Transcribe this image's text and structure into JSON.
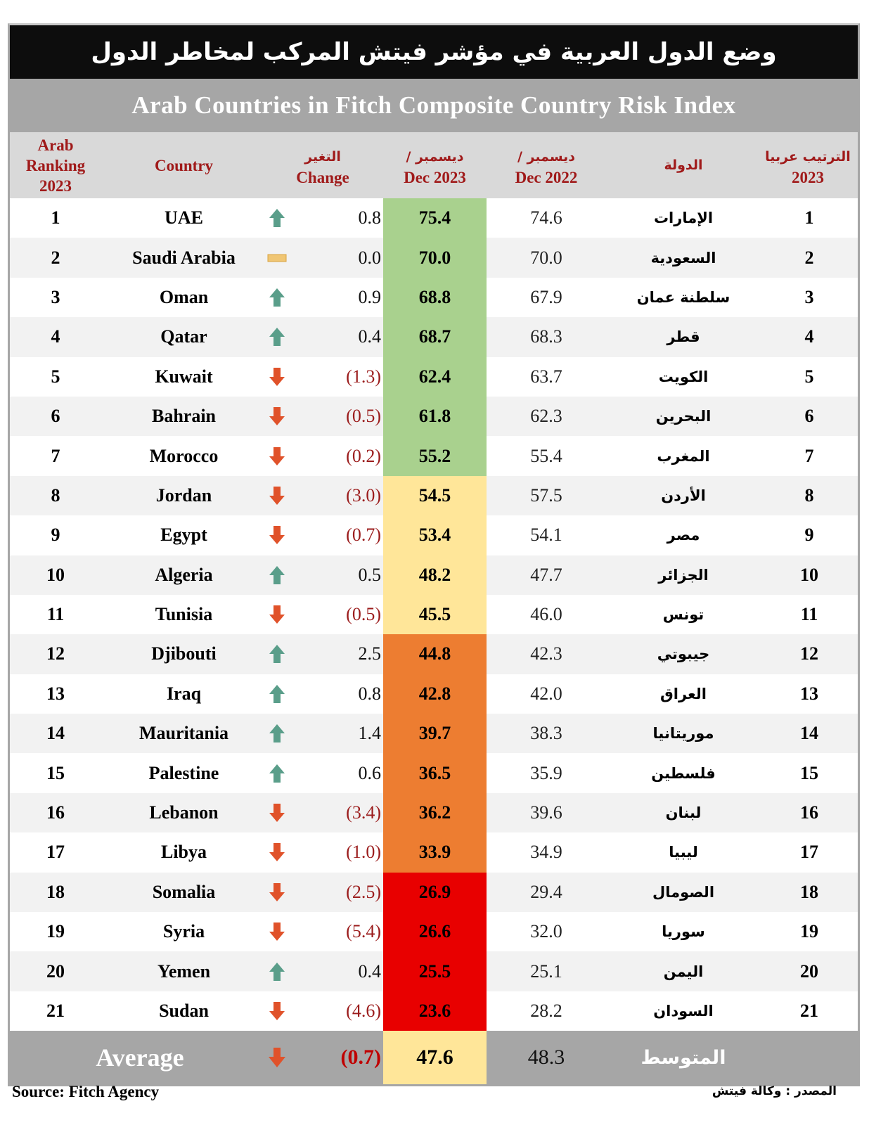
{
  "title": {
    "arabic": "وضع الدول العربية في مؤشر فيتش المركب لمخاطر الدول",
    "english": "Arab Countries in Fitch Composite Country Risk Index"
  },
  "headers": {
    "arab_ranking": [
      "Arab",
      "Ranking",
      "2023"
    ],
    "country": "Country",
    "change_ar": "التغير",
    "change_en": "Change",
    "dec2023_ar": "ديسمبر /",
    "dec2023_en": "Dec 2023",
    "dec2022_ar": "ديسمبر /",
    "dec2022_en": "Dec 2022",
    "country_ar": "الدولة",
    "ranking_ar": "الترتيب عربيا",
    "ranking_ar_year": "2023"
  },
  "colors": {
    "green": "#a9d18e",
    "yellow": "#ffe699",
    "orange": "#ed7d31",
    "red": "#e80000",
    "up_arrow": "#5a9e8a",
    "down_arrow": "#e0522a",
    "flat": "#f0c674",
    "header_text": "#a01a1a"
  },
  "rows": [
    {
      "rank": "1",
      "country": "UAE",
      "trend": "up",
      "change": "0.8",
      "dec2023": "75.4",
      "dec2022": "74.6",
      "country_ar": "الإمارات",
      "band": "green"
    },
    {
      "rank": "2",
      "country": "Saudi Arabia",
      "trend": "flat",
      "change": "0.0",
      "dec2023": "70.0",
      "dec2022": "70.0",
      "country_ar": "السعودية",
      "band": "green"
    },
    {
      "rank": "3",
      "country": "Oman",
      "trend": "up",
      "change": "0.9",
      "dec2023": "68.8",
      "dec2022": "67.9",
      "country_ar": "سلطنة عمان",
      "band": "green"
    },
    {
      "rank": "4",
      "country": "Qatar",
      "trend": "up",
      "change": "0.4",
      "dec2023": "68.7",
      "dec2022": "68.3",
      "country_ar": "قطر",
      "band": "green"
    },
    {
      "rank": "5",
      "country": "Kuwait",
      "trend": "down",
      "change": "(1.3)",
      "dec2023": "62.4",
      "dec2022": "63.7",
      "country_ar": "الكويت",
      "band": "green"
    },
    {
      "rank": "6",
      "country": "Bahrain",
      "trend": "down",
      "change": "(0.5)",
      "dec2023": "61.8",
      "dec2022": "62.3",
      "country_ar": "البحرين",
      "band": "green"
    },
    {
      "rank": "7",
      "country": "Morocco",
      "trend": "down",
      "change": "(0.2)",
      "dec2023": "55.2",
      "dec2022": "55.4",
      "country_ar": "المغرب",
      "band": "green"
    },
    {
      "rank": "8",
      "country": "Jordan",
      "trend": "down",
      "change": "(3.0)",
      "dec2023": "54.5",
      "dec2022": "57.5",
      "country_ar": "الأردن",
      "band": "yellow"
    },
    {
      "rank": "9",
      "country": "Egypt",
      "trend": "down",
      "change": "(0.7)",
      "dec2023": "53.4",
      "dec2022": "54.1",
      "country_ar": "مصر",
      "band": "yellow"
    },
    {
      "rank": "10",
      "country": "Algeria",
      "trend": "up",
      "change": "0.5",
      "dec2023": "48.2",
      "dec2022": "47.7",
      "country_ar": "الجزائر",
      "band": "yellow"
    },
    {
      "rank": "11",
      "country": "Tunisia",
      "trend": "down",
      "change": "(0.5)",
      "dec2023": "45.5",
      "dec2022": "46.0",
      "country_ar": "تونس",
      "band": "yellow"
    },
    {
      "rank": "12",
      "country": "Djibouti",
      "trend": "up",
      "change": "2.5",
      "dec2023": "44.8",
      "dec2022": "42.3",
      "country_ar": "جيبوتي",
      "band": "orange"
    },
    {
      "rank": "13",
      "country": "Iraq",
      "trend": "up",
      "change": "0.8",
      "dec2023": "42.8",
      "dec2022": "42.0",
      "country_ar": "العراق",
      "band": "orange"
    },
    {
      "rank": "14",
      "country": "Mauritania",
      "trend": "up",
      "change": "1.4",
      "dec2023": "39.7",
      "dec2022": "38.3",
      "country_ar": "موريتانيا",
      "band": "orange"
    },
    {
      "rank": "15",
      "country": "Palestine",
      "trend": "up",
      "change": "0.6",
      "dec2023": "36.5",
      "dec2022": "35.9",
      "country_ar": "فلسطين",
      "band": "orange"
    },
    {
      "rank": "16",
      "country": "Lebanon",
      "trend": "down",
      "change": "(3.4)",
      "dec2023": "36.2",
      "dec2022": "39.6",
      "country_ar": "لبنان",
      "band": "orange"
    },
    {
      "rank": "17",
      "country": "Libya",
      "trend": "down",
      "change": "(1.0)",
      "dec2023": "33.9",
      "dec2022": "34.9",
      "country_ar": "ليبيا",
      "band": "orange"
    },
    {
      "rank": "18",
      "country": "Somalia",
      "trend": "down",
      "change": "(2.5)",
      "dec2023": "26.9",
      "dec2022": "29.4",
      "country_ar": "الصومال",
      "band": "red"
    },
    {
      "rank": "19",
      "country": "Syria",
      "trend": "down",
      "change": "(5.4)",
      "dec2023": "26.6",
      "dec2022": "32.0",
      "country_ar": "سوريا",
      "band": "red"
    },
    {
      "rank": "20",
      "country": "Yemen",
      "trend": "up",
      "change": "0.4",
      "dec2023": "25.5",
      "dec2022": "25.1",
      "country_ar": "اليمن",
      "band": "red"
    },
    {
      "rank": "21",
      "country": "Sudan",
      "trend": "down",
      "change": "(4.6)",
      "dec2023": "23.6",
      "dec2022": "28.2",
      "country_ar": "السودان",
      "band": "red"
    }
  ],
  "average": {
    "label": "Average",
    "label_ar": "المتوسط",
    "trend": "down",
    "change": "(0.7)",
    "dec2023": "47.6",
    "dec2022": "48.3"
  },
  "footer": {
    "source_en": "Source: Fitch Agency",
    "source_ar": "المصدر :  وكالة فيتش"
  }
}
